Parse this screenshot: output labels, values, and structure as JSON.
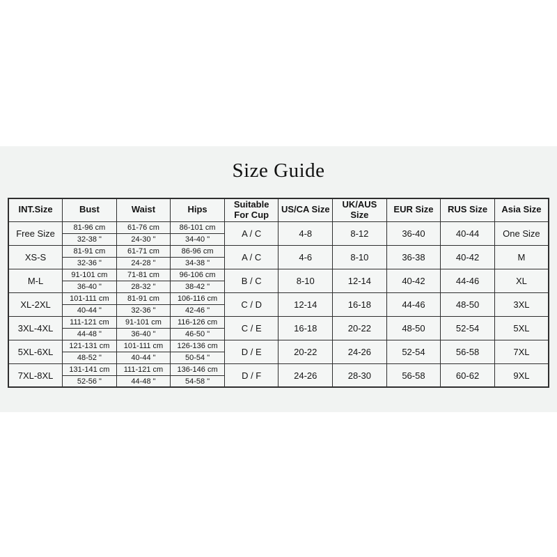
{
  "title": "Size Guide",
  "table": {
    "headers": [
      "INT.Size",
      "Bust",
      "Waist",
      "Hips",
      "Suitable For Cup",
      "US/CA Size",
      "UK/AUS Size",
      "EUR Size",
      "RUS Size",
      "Asia Size"
    ],
    "rows": [
      {
        "int_size": "Free Size",
        "bust_cm": "81-96 cm",
        "bust_in": "32-38 \"",
        "waist_cm": "61-76 cm",
        "waist_in": "24-30 \"",
        "hips_cm": "86-101 cm",
        "hips_in": "34-40 \"",
        "cup": "A / C",
        "us_ca": "4-8",
        "uk_aus": "8-12",
        "eur": "36-40",
        "rus": "40-44",
        "asia": "One Size"
      },
      {
        "int_size": "XS-S",
        "bust_cm": "81-91 cm",
        "bust_in": "32-36 \"",
        "waist_cm": "61-71 cm",
        "waist_in": "24-28 \"",
        "hips_cm": "86-96 cm",
        "hips_in": "34-38 \"",
        "cup": "A / C",
        "us_ca": "4-6",
        "uk_aus": "8-10",
        "eur": "36-38",
        "rus": "40-42",
        "asia": "M"
      },
      {
        "int_size": "M-L",
        "bust_cm": "91-101 cm",
        "bust_in": "36-40 \"",
        "waist_cm": "71-81 cm",
        "waist_in": "28-32 \"",
        "hips_cm": "96-106 cm",
        "hips_in": "38-42 \"",
        "cup": "B / C",
        "us_ca": "8-10",
        "uk_aus": "12-14",
        "eur": "40-42",
        "rus": "44-46",
        "asia": "XL"
      },
      {
        "int_size": "XL-2XL",
        "bust_cm": "101-111 cm",
        "bust_in": "40-44 \"",
        "waist_cm": "81-91 cm",
        "waist_in": "32-36 \"",
        "hips_cm": "106-116 cm",
        "hips_in": "42-46 \"",
        "cup": "C / D",
        "us_ca": "12-14",
        "uk_aus": "16-18",
        "eur": "44-46",
        "rus": "48-50",
        "asia": "3XL"
      },
      {
        "int_size": "3XL-4XL",
        "bust_cm": "111-121 cm",
        "bust_in": "44-48 \"",
        "waist_cm": "91-101 cm",
        "waist_in": "36-40 \"",
        "hips_cm": "116-126 cm",
        "hips_in": "46-50 \"",
        "cup": "C / E",
        "us_ca": "16-18",
        "uk_aus": "20-22",
        "eur": "48-50",
        "rus": "52-54",
        "asia": "5XL"
      },
      {
        "int_size": "5XL-6XL",
        "bust_cm": "121-131 cm",
        "bust_in": "48-52 \"",
        "waist_cm": "101-111 cm",
        "waist_in": "40-44 \"",
        "hips_cm": "126-136 cm",
        "hips_in": "50-54 \"",
        "cup": "D / E",
        "us_ca": "20-22",
        "uk_aus": "24-26",
        "eur": "52-54",
        "rus": "56-58",
        "asia": "7XL"
      },
      {
        "int_size": "7XL-8XL",
        "bust_cm": "131-141 cm",
        "bust_in": "52-56 \"",
        "waist_cm": "111-121 cm",
        "waist_in": "44-48 \"",
        "hips_cm": "136-146 cm",
        "hips_in": "54-58 \"",
        "cup": "D / F",
        "us_ca": "24-26",
        "uk_aus": "28-30",
        "eur": "56-58",
        "rus": "60-62",
        "asia": "9XL"
      }
    ]
  }
}
